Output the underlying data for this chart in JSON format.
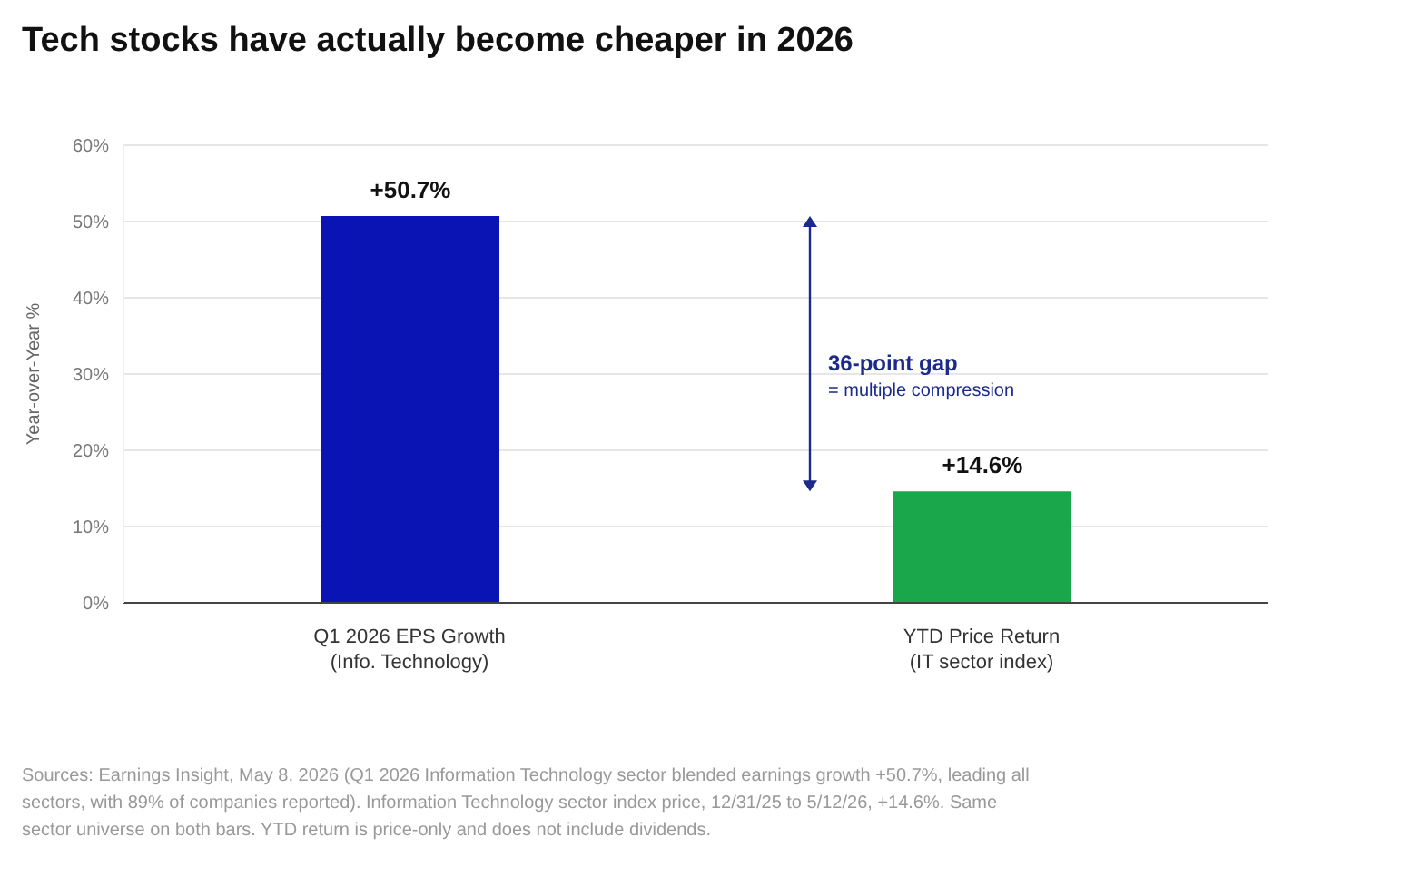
{
  "chart_data": {
    "type": "bar",
    "title": "Tech stocks have actually become cheaper in 2026",
    "ylabel": "Year-over-Year %",
    "categories": [
      "Q1 2026 EPS Growth\n(Info. Technology)",
      "YTD Price Return\n(IT sector index)"
    ],
    "values": [
      50.7,
      14.6
    ],
    "colors": [
      "#0a14b4",
      "#1aa64a"
    ],
    "value_labels": [
      "+50.7%",
      "+14.6%"
    ],
    "ylim": [
      0,
      60
    ],
    "yticks": [
      {
        "value": 0,
        "label": "0%"
      },
      {
        "value": 10,
        "label": "10%"
      },
      {
        "value": 20,
        "label": "20%"
      },
      {
        "value": 30,
        "label": "30%"
      },
      {
        "value": 40,
        "label": "40%"
      },
      {
        "value": 50,
        "label": "50%"
      },
      {
        "value": 60,
        "label": "60%"
      }
    ],
    "grid": "y",
    "legend": false,
    "annotations": [
      "36-point gap",
      "= multiple compression",
      "Sources: Earnings Insight, May 8, 2026 (Q1 2026 Information Technology sector blended earnings growth +50.7%, leading all sectors, with 89% of companies reported). Information Technology sector index price, 12/31/25 to 5/12/26, +14.6%. Same sector universe on both bars. YTD return is price-only and does not include dividends."
    ]
  }
}
